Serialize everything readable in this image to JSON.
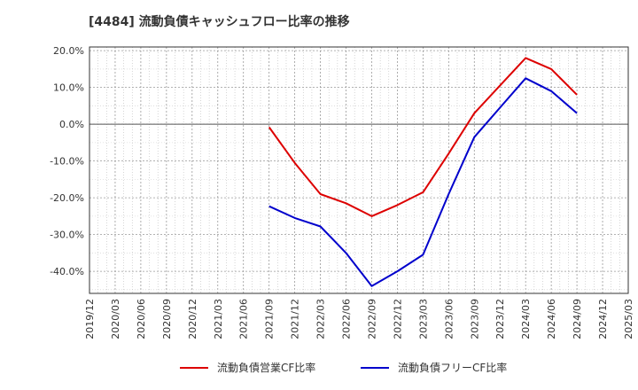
{
  "chart_data": {
    "type": "line",
    "title": "[4484]  流動負債キャッシュフロー比率の推移",
    "xlabel": "",
    "ylabel": "",
    "ylim": [
      -46,
      21
    ],
    "yticks": [
      20,
      10,
      0,
      -10,
      -20,
      -30,
      -40
    ],
    "ytick_labels": [
      "20.0%",
      "10.0%",
      "0.0%",
      "-10.0%",
      "-20.0%",
      "-30.0%",
      "-40.0%"
    ],
    "categories": [
      "2019/12",
      "2020/03",
      "2020/06",
      "2020/09",
      "2020/12",
      "2021/03",
      "2021/06",
      "2021/09",
      "2021/12",
      "2022/03",
      "2022/06",
      "2022/09",
      "2022/12",
      "2023/03",
      "2023/06",
      "2023/09",
      "2023/12",
      "2024/03",
      "2024/06",
      "2024/09",
      "2024/12",
      "2025/03"
    ],
    "grid": true,
    "legend_position": "bottom",
    "series": [
      {
        "name": "流動負債営業CF比率",
        "color": "#dd0000",
        "values": [
          null,
          null,
          null,
          null,
          null,
          null,
          null,
          -0.8,
          -10.5,
          -19.0,
          -21.5,
          -25.0,
          -22.0,
          -18.5,
          -8.0,
          3.0,
          10.5,
          18.0,
          15.0,
          8.0,
          null,
          null
        ]
      },
      {
        "name": "流動負債フリーCF比率",
        "color": "#0000cc",
        "values": [
          null,
          null,
          null,
          null,
          null,
          null,
          null,
          -22.3,
          -25.5,
          -27.8,
          -35.0,
          -44.0,
          -40.0,
          -35.5,
          -19.0,
          -3.5,
          4.5,
          12.5,
          9.0,
          3.0,
          null,
          null
        ]
      }
    ]
  }
}
